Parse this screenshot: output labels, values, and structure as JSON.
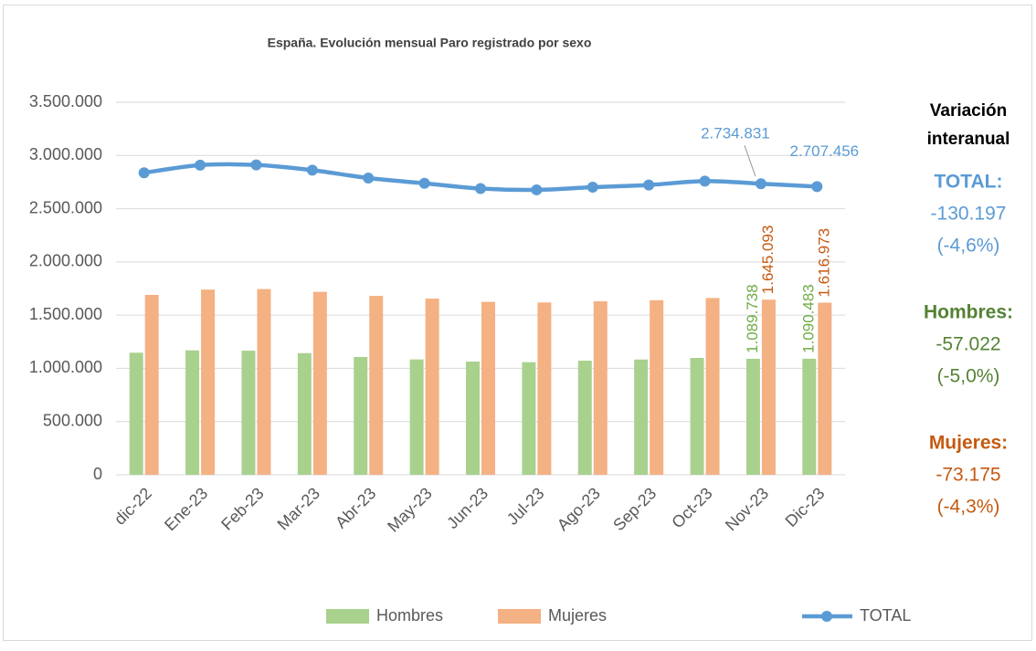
{
  "chart_data": {
    "type": "bar_line",
    "title": "España. Evolución mensual Paro registrado por sexo",
    "categories": [
      "dic-22",
      "Ene-23",
      "Feb-23",
      "Mar-23",
      "Abr-23",
      "May-23",
      "Jun-23",
      "Jul-23",
      "Ago-23",
      "Sep-23",
      "Oct-23",
      "Nov-23",
      "Dic-23"
    ],
    "series": [
      {
        "name": "Hombres",
        "type": "bar",
        "color": "#a9d18e",
        "label_color": "#70ad47",
        "values": [
          1147000,
          1169000,
          1166000,
          1143000,
          1107000,
          1084000,
          1064000,
          1058000,
          1072000,
          1083000,
          1098000,
          1089738,
          1090483
        ],
        "value_labels": [
          null,
          null,
          null,
          null,
          null,
          null,
          null,
          null,
          null,
          null,
          null,
          "1.089.738",
          "1.090.483"
        ]
      },
      {
        "name": "Mujeres",
        "type": "bar",
        "color": "#f4b183",
        "label_color": "#c55a11",
        "values": [
          1690000,
          1740000,
          1745000,
          1719000,
          1681000,
          1655000,
          1625000,
          1619000,
          1630000,
          1640000,
          1661000,
          1645093,
          1616973
        ],
        "value_labels": [
          null,
          null,
          null,
          null,
          null,
          null,
          null,
          null,
          null,
          null,
          null,
          "1.645.093",
          "1.616.973"
        ]
      },
      {
        "name": "TOTAL",
        "type": "line",
        "color": "#5b9bd5",
        "label_color": "#5b9bd5",
        "values": [
          2837000,
          2909000,
          2911000,
          2862000,
          2788000,
          2739000,
          2689000,
          2677000,
          2702000,
          2723000,
          2759000,
          2734831,
          2707456
        ],
        "value_labels": [
          null,
          null,
          null,
          null,
          null,
          null,
          null,
          null,
          null,
          null,
          null,
          "2.734.831",
          "2.707.456"
        ]
      }
    ],
    "ylim": [
      0,
      3500000
    ],
    "yticks": [
      0,
      {
        "value": 500000,
        "label": "500.000"
      },
      {
        "value": 1000000,
        "label": "1.000.000"
      },
      {
        "value": 1500000,
        "label": "1.500.000"
      },
      {
        "value": 2000000,
        "label": "2.000.000"
      },
      {
        "value": 2500000,
        "label": "2.500.000"
      },
      {
        "value": 3000000,
        "label": "3.000.000"
      },
      {
        "value": 3500000,
        "label": "3.500.000"
      }
    ],
    "grid": true,
    "legend": "bottom"
  },
  "side_panel": {
    "title": [
      "Variación",
      "interanual"
    ],
    "items": [
      {
        "label": "TOTAL:",
        "value": "-130.197",
        "pct": "(-4,6%)",
        "color": "#5b9bd5",
        "value_color": "#5b9bd5"
      },
      {
        "label": "Hombres:",
        "value": "-57.022",
        "pct": "(-5,0%)",
        "color": "#548235",
        "value_color": "#548235"
      },
      {
        "label": "Mujeres:",
        "value": "-73.175",
        "pct": "(-4,3%)",
        "color": "#c55a11",
        "value_color": "#c55a11"
      }
    ]
  }
}
